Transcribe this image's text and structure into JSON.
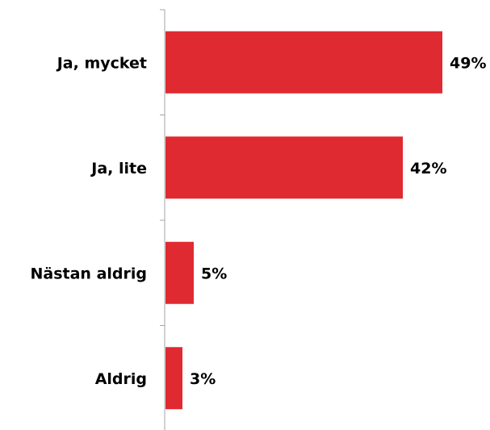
{
  "chart_data": {
    "type": "bar",
    "orientation": "horizontal",
    "categories": [
      "Ja, mycket",
      "Ja, lite",
      "Nästan aldrig",
      "Aldrig"
    ],
    "values": [
      49,
      42,
      5,
      3
    ],
    "value_labels": [
      "49%",
      "42%",
      "5%",
      "3%"
    ],
    "unit": "%",
    "xlim": [
      0,
      50
    ],
    "title": "",
    "xlabel": "",
    "ylabel": "",
    "grid": false,
    "legend": "none",
    "bar_color": "#e02a31",
    "axis_color": "#a6a6a6"
  }
}
